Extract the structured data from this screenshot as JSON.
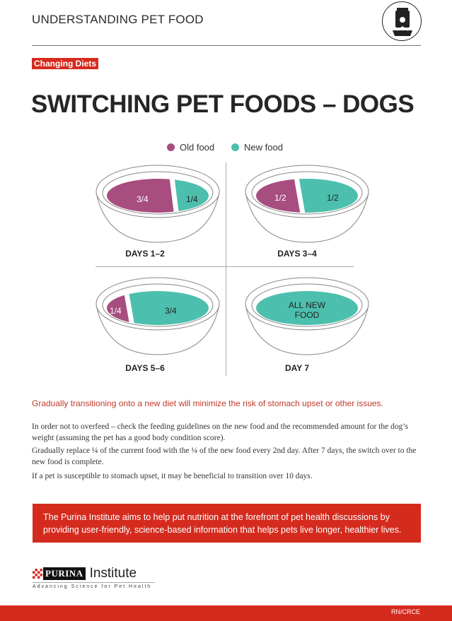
{
  "header": {
    "section": "UNDERSTANDING PET FOOD",
    "icon": "pet-food-bag-bowl-icon"
  },
  "tag": "Changing Diets",
  "title": "SWITCHING PET FOODS – DOGS",
  "legend": [
    {
      "label": "Old food",
      "color": "#a84d80"
    },
    {
      "label": "New food",
      "color": "#4dbfae"
    }
  ],
  "stages": [
    {
      "label": "DAYS 1–2",
      "old": "3/4",
      "new": "1/4",
      "old_fraction": 0.75
    },
    {
      "label": "DAYS 3–4",
      "old": "1/2",
      "new": "1/2",
      "old_fraction": 0.5
    },
    {
      "label": "DAYS 5–6",
      "old": "1/4",
      "new": "3/4",
      "old_fraction": 0.25
    },
    {
      "label": "DAY 7",
      "new_line1": "ALL NEW",
      "new_line2": "FOOD",
      "old_fraction": 0
    }
  ],
  "lead": "Gradually transitioning onto a new diet will minimize the risk of stomach upset or other issues.",
  "paragraphs": [
    "In order not to overfeed – check the feeding guidelines on the new food and the recommended amount for the dog’s weight (assuming the pet has a good body condition score).",
    "Gradually replace ¼ of the current food with the ¼ of the new food every 2nd day. After 7 days, the switch over to the new food is complete.",
    "If a pet is susceptible to stomach upset, it may be beneficial to transition over 10 days."
  ],
  "banner": "The Purina Institute aims to help put nutrition at the forefront of pet health discussions by providing user-friendly, science-based information that helps pets live longer, healthier lives.",
  "brand": {
    "logo_text": "PURINA",
    "institute": "Institute",
    "tagline": "Advancing Science for Pet Health"
  },
  "footer": {
    "code": "RN/CRCE"
  },
  "colors": {
    "red": "#d52b1e",
    "old": "#a84d80",
    "new": "#4dbfae"
  }
}
